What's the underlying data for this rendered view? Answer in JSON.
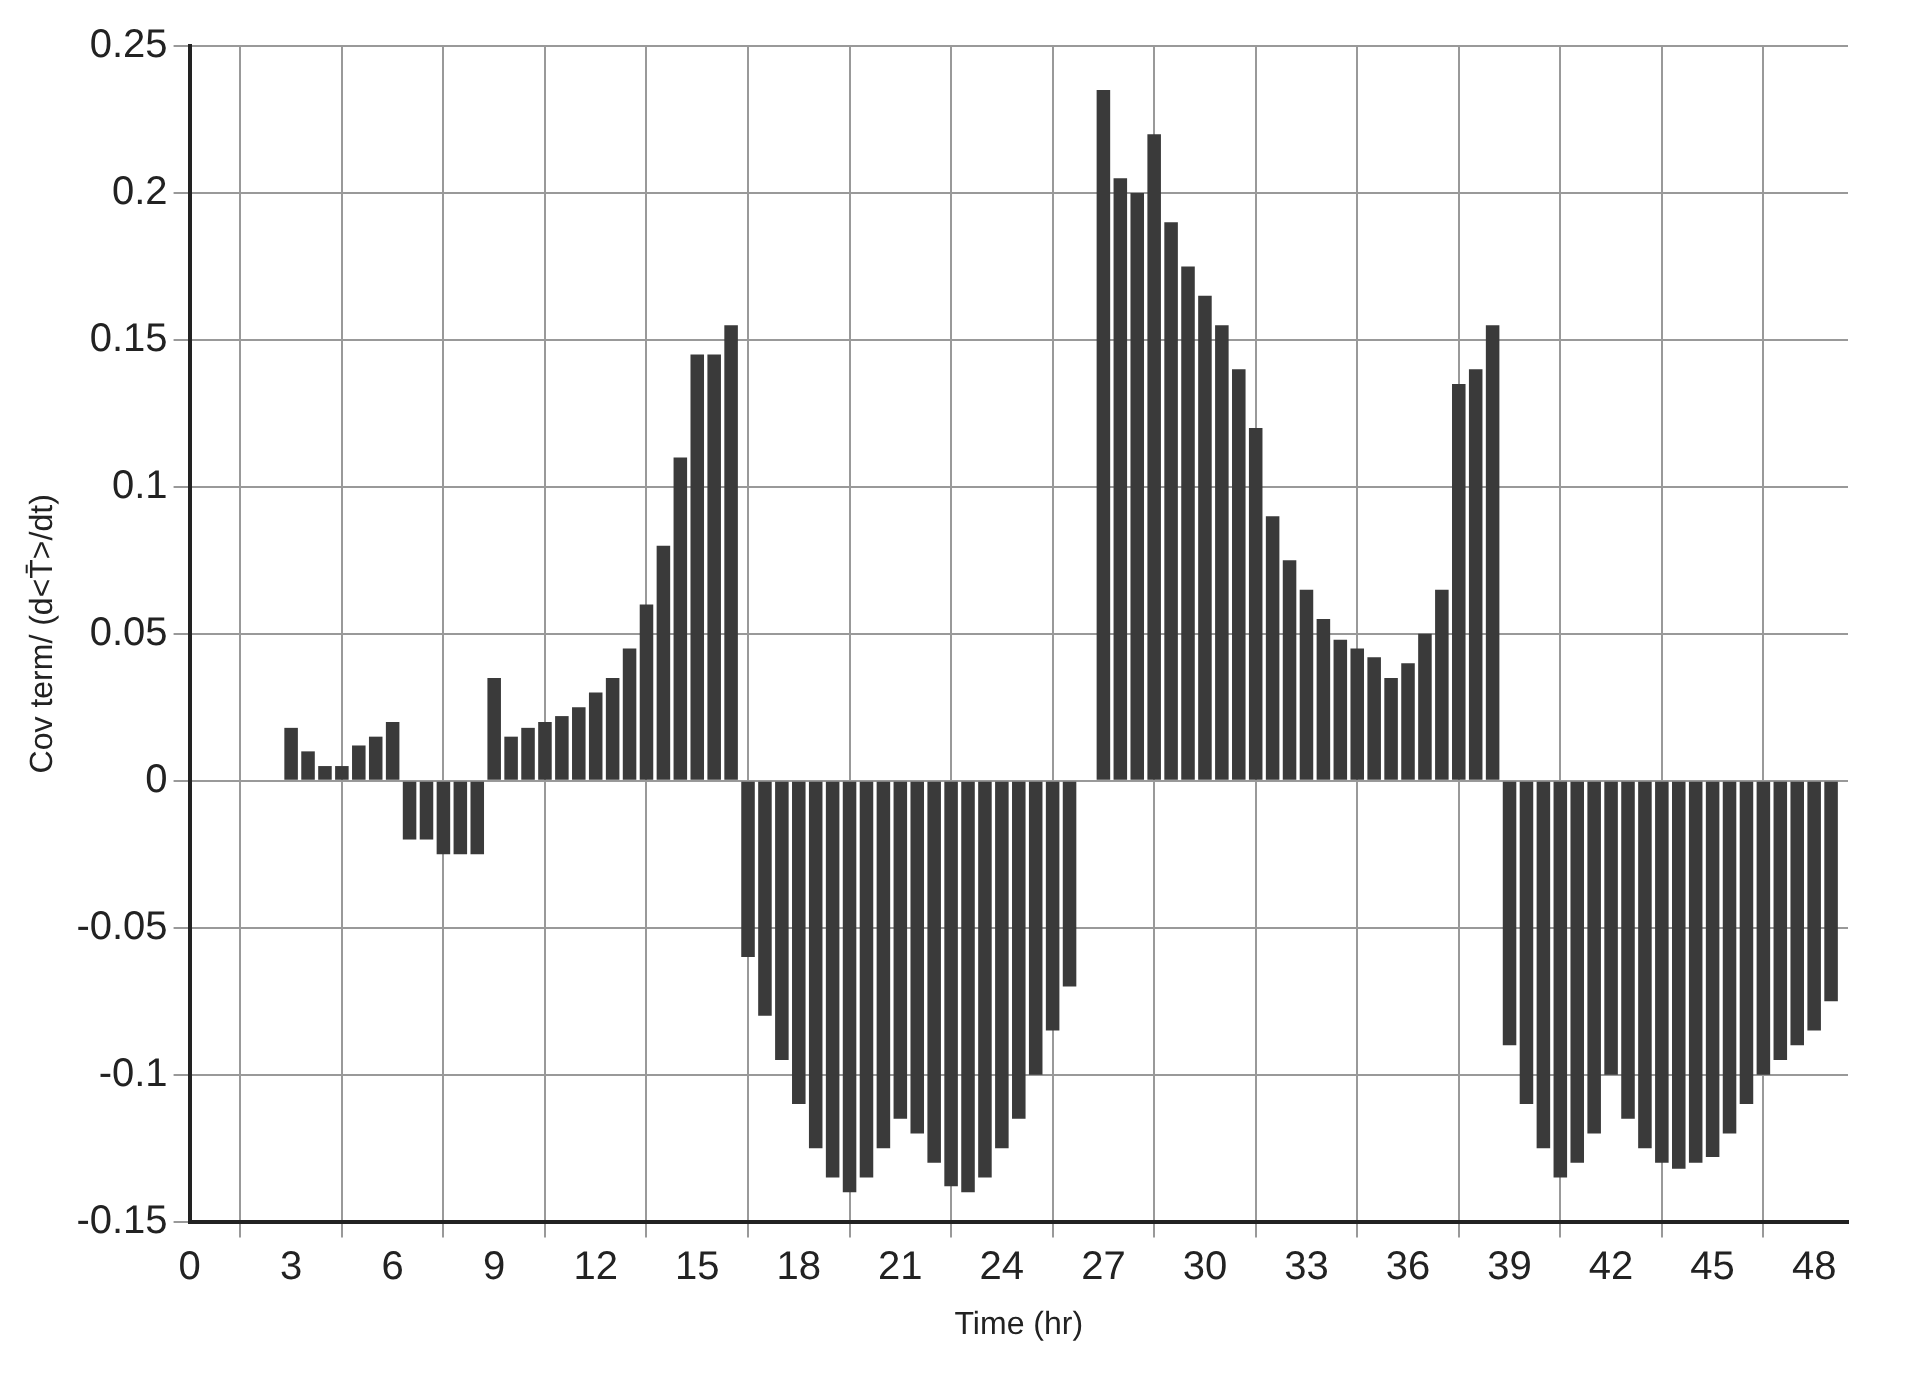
{
  "chart_data": {
    "type": "bar",
    "xlabel": "Time (hr)",
    "ylabel": "Cov term/ (d<T̄>/dt)",
    "x": [
      0,
      0.5,
      1,
      1.5,
      2,
      2.5,
      3,
      3.5,
      4,
      4.5,
      5,
      5.5,
      6,
      6.5,
      7,
      7.5,
      8,
      8.5,
      9,
      9.5,
      10,
      10.5,
      11,
      11.5,
      12,
      12.5,
      13,
      13.5,
      14,
      14.5,
      15,
      15.5,
      16,
      16.5,
      17,
      17.5,
      18,
      18.5,
      19,
      19.5,
      20,
      20.5,
      21,
      21.5,
      22,
      22.5,
      23,
      23.5,
      24,
      24.5,
      25,
      25.5,
      26,
      26.5,
      27,
      27.5,
      28,
      28.5,
      29,
      29.5,
      30,
      30.5,
      31,
      31.5,
      32,
      32.5,
      33,
      33.5,
      34,
      34.5,
      35,
      35.5,
      36,
      36.5,
      37,
      37.5,
      38,
      38.5,
      39,
      39.5,
      40,
      40.5,
      41,
      41.5,
      42,
      42.5,
      43,
      43.5,
      44,
      44.5,
      45,
      45.5,
      46,
      46.5,
      47,
      47.5,
      48,
      48.5
    ],
    "values": [
      0,
      0,
      0,
      0,
      0,
      0,
      0.018,
      0.01,
      0.005,
      0.005,
      0.012,
      0.015,
      0.02,
      -0.02,
      -0.02,
      -0.025,
      -0.025,
      -0.025,
      0.035,
      0.015,
      0.018,
      0.02,
      0.022,
      0.025,
      0.03,
      0.035,
      0.045,
      0.06,
      0.08,
      0.11,
      0.145,
      0.145,
      0.155,
      -0.06,
      -0.08,
      -0.095,
      -0.11,
      -0.125,
      -0.135,
      -0.14,
      -0.135,
      -0.125,
      -0.115,
      -0.12,
      -0.13,
      -0.138,
      -0.14,
      -0.135,
      -0.125,
      -0.115,
      -0.1,
      -0.085,
      -0.07,
      0,
      0.235,
      0.205,
      0.2,
      0.22,
      0.19,
      0.175,
      0.165,
      0.155,
      0.14,
      0.12,
      0.09,
      0.075,
      0.065,
      0.055,
      0.048,
      0.045,
      0.042,
      0.035,
      0.04,
      0.05,
      0.065,
      0.135,
      0.14,
      0.155,
      -0.09,
      -0.11,
      -0.125,
      -0.135,
      -0.13,
      -0.12,
      -0.1,
      -0.115,
      -0.125,
      -0.13,
      -0.132,
      -0.13,
      -0.128,
      -0.12,
      -0.11,
      -0.1,
      -0.095,
      -0.09,
      -0.085,
      -0.075
    ],
    "color": "#3a3a3a",
    "xlim": [
      0,
      49
    ],
    "xticks": [
      0,
      3,
      6,
      9,
      12,
      15,
      18,
      21,
      24,
      27,
      30,
      33,
      36,
      39,
      42,
      45,
      48
    ],
    "ylim": [
      -0.15,
      0.25
    ],
    "yticks": [
      -0.15,
      -0.1,
      -0.05,
      0,
      0.05,
      0.1,
      0.15,
      0.2,
      0.25
    ],
    "grid": true
  }
}
